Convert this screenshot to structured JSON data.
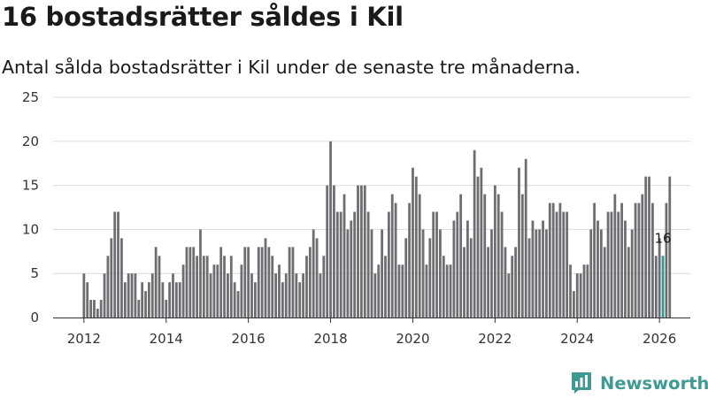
{
  "header": {
    "title": "16 bostadsrätter såldes i Kil",
    "subtitle": "Antal sålda bostadsrätter i Kil under de senaste tre månaderna."
  },
  "brand": {
    "name": "Newsworthy",
    "color": "#3f9a94"
  },
  "colors": {
    "bar": "#6e6d72",
    "highlight": "#2a9d96",
    "grid": "#dcdcdc",
    "axis": "#333333"
  },
  "chart_data": {
    "type": "bar",
    "title": "16 bostadsrätter såldes i Kil",
    "subtitle": "Antal sålda bostadsrätter i Kil under de senaste tre månaderna.",
    "xlabel": "",
    "ylabel": "",
    "ylim": [
      0,
      25
    ],
    "yticks": [
      0,
      5,
      10,
      15,
      20,
      25
    ],
    "grid": true,
    "x_range": [
      2011.25,
      2026.75
    ],
    "xticks": [
      2012,
      2014,
      2016,
      2018,
      2020,
      2022,
      2024,
      2026
    ],
    "xtick_labels": [
      "2012",
      "2014",
      "2016",
      "2018",
      "2020",
      "2022",
      "2024",
      "2026"
    ],
    "start": {
      "year": 2012,
      "month": 1
    },
    "period": "monthly",
    "values": [
      5,
      4,
      2,
      2,
      1,
      2,
      5,
      7,
      9,
      12,
      12,
      9,
      4,
      5,
      5,
      5,
      2,
      4,
      3,
      4,
      5,
      8,
      7,
      4,
      2,
      4,
      5,
      4,
      4,
      6,
      8,
      8,
      8,
      7,
      10,
      7,
      7,
      5,
      6,
      6,
      8,
      7,
      5,
      7,
      4,
      3,
      6,
      8,
      8,
      5,
      4,
      8,
      8,
      9,
      8,
      7,
      5,
      6,
      4,
      5,
      8,
      8,
      5,
      4,
      5,
      7,
      8,
      10,
      9,
      5,
      7,
      15,
      20,
      15,
      12,
      12,
      14,
      10,
      11,
      12,
      15,
      15,
      15,
      12,
      10,
      5,
      6,
      10,
      7,
      12,
      14,
      13,
      6,
      6,
      9,
      13,
      17,
      16,
      14,
      10,
      6,
      9,
      12,
      12,
      10,
      7,
      6,
      6,
      11,
      12,
      14,
      8,
      11,
      9,
      19,
      16,
      17,
      14,
      8,
      10,
      15,
      14,
      12,
      8,
      5,
      7,
      8,
      17,
      14,
      18,
      9,
      11,
      10,
      10,
      11,
      10,
      13,
      13,
      12,
      13,
      12,
      12,
      6,
      3,
      5,
      5,
      6,
      6,
      10,
      13,
      11,
      10,
      8,
      12,
      12,
      14,
      12,
      13,
      11,
      8,
      10,
      13,
      13,
      14,
      16,
      16,
      13,
      7,
      9,
      7,
      13,
      16
    ],
    "highlight_index": 169,
    "annotations": [
      {
        "target": "last",
        "text": "16"
      }
    ]
  }
}
